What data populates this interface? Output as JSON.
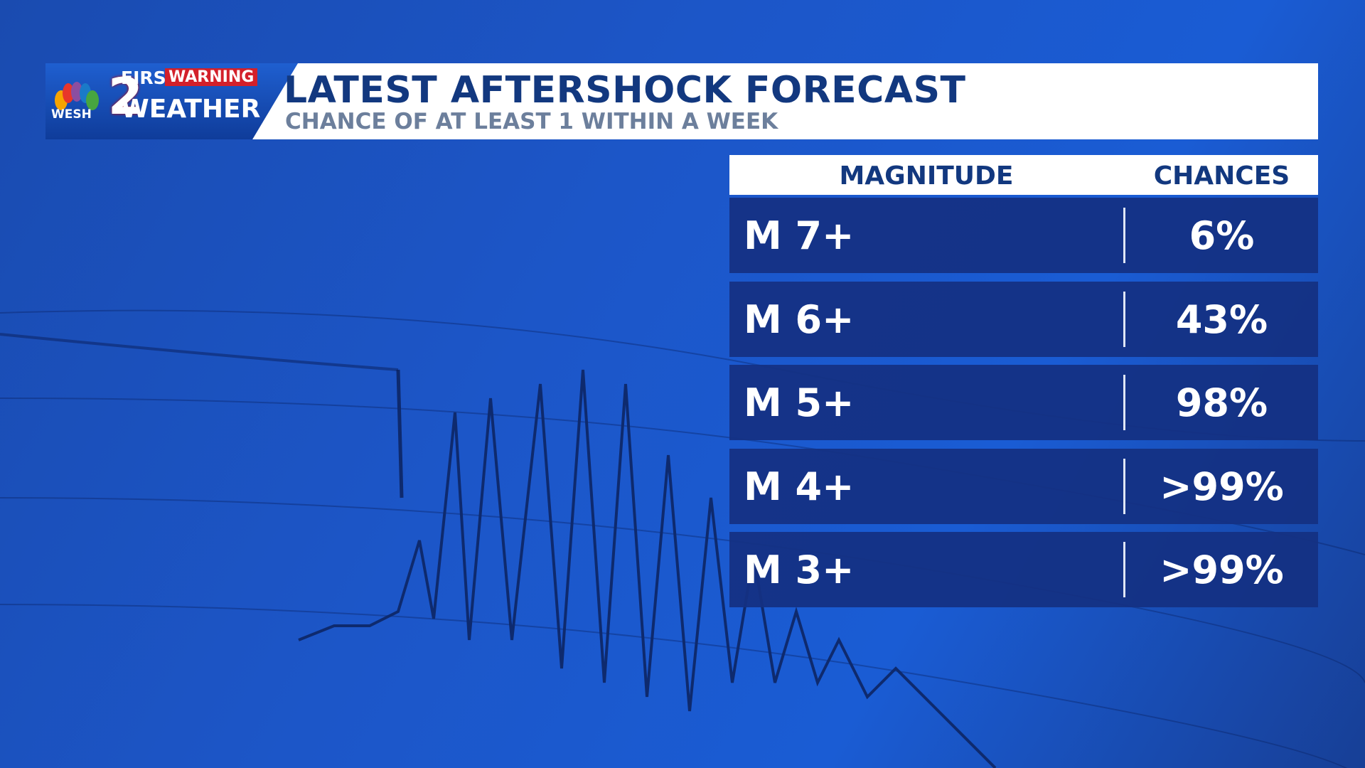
{
  "logo": {
    "station": "WESH",
    "channel": "2",
    "first": "FIRST",
    "warning": "WARNING",
    "weather": "WEATHER"
  },
  "header": {
    "title": "LATEST AFTERSHOCK FORECAST",
    "subtitle": "CHANCE OF AT LEAST 1  WITHIN A WEEK"
  },
  "table": {
    "columns": [
      "MAGNITUDE",
      "CHANCES"
    ],
    "rows": [
      [
        "M 7+",
        "6%"
      ],
      [
        "M 6+",
        "43%"
      ],
      [
        "M 5+",
        "98%"
      ],
      [
        "M 4+",
        ">99%"
      ],
      [
        "M 3+",
        ">99%"
      ]
    ]
  }
}
